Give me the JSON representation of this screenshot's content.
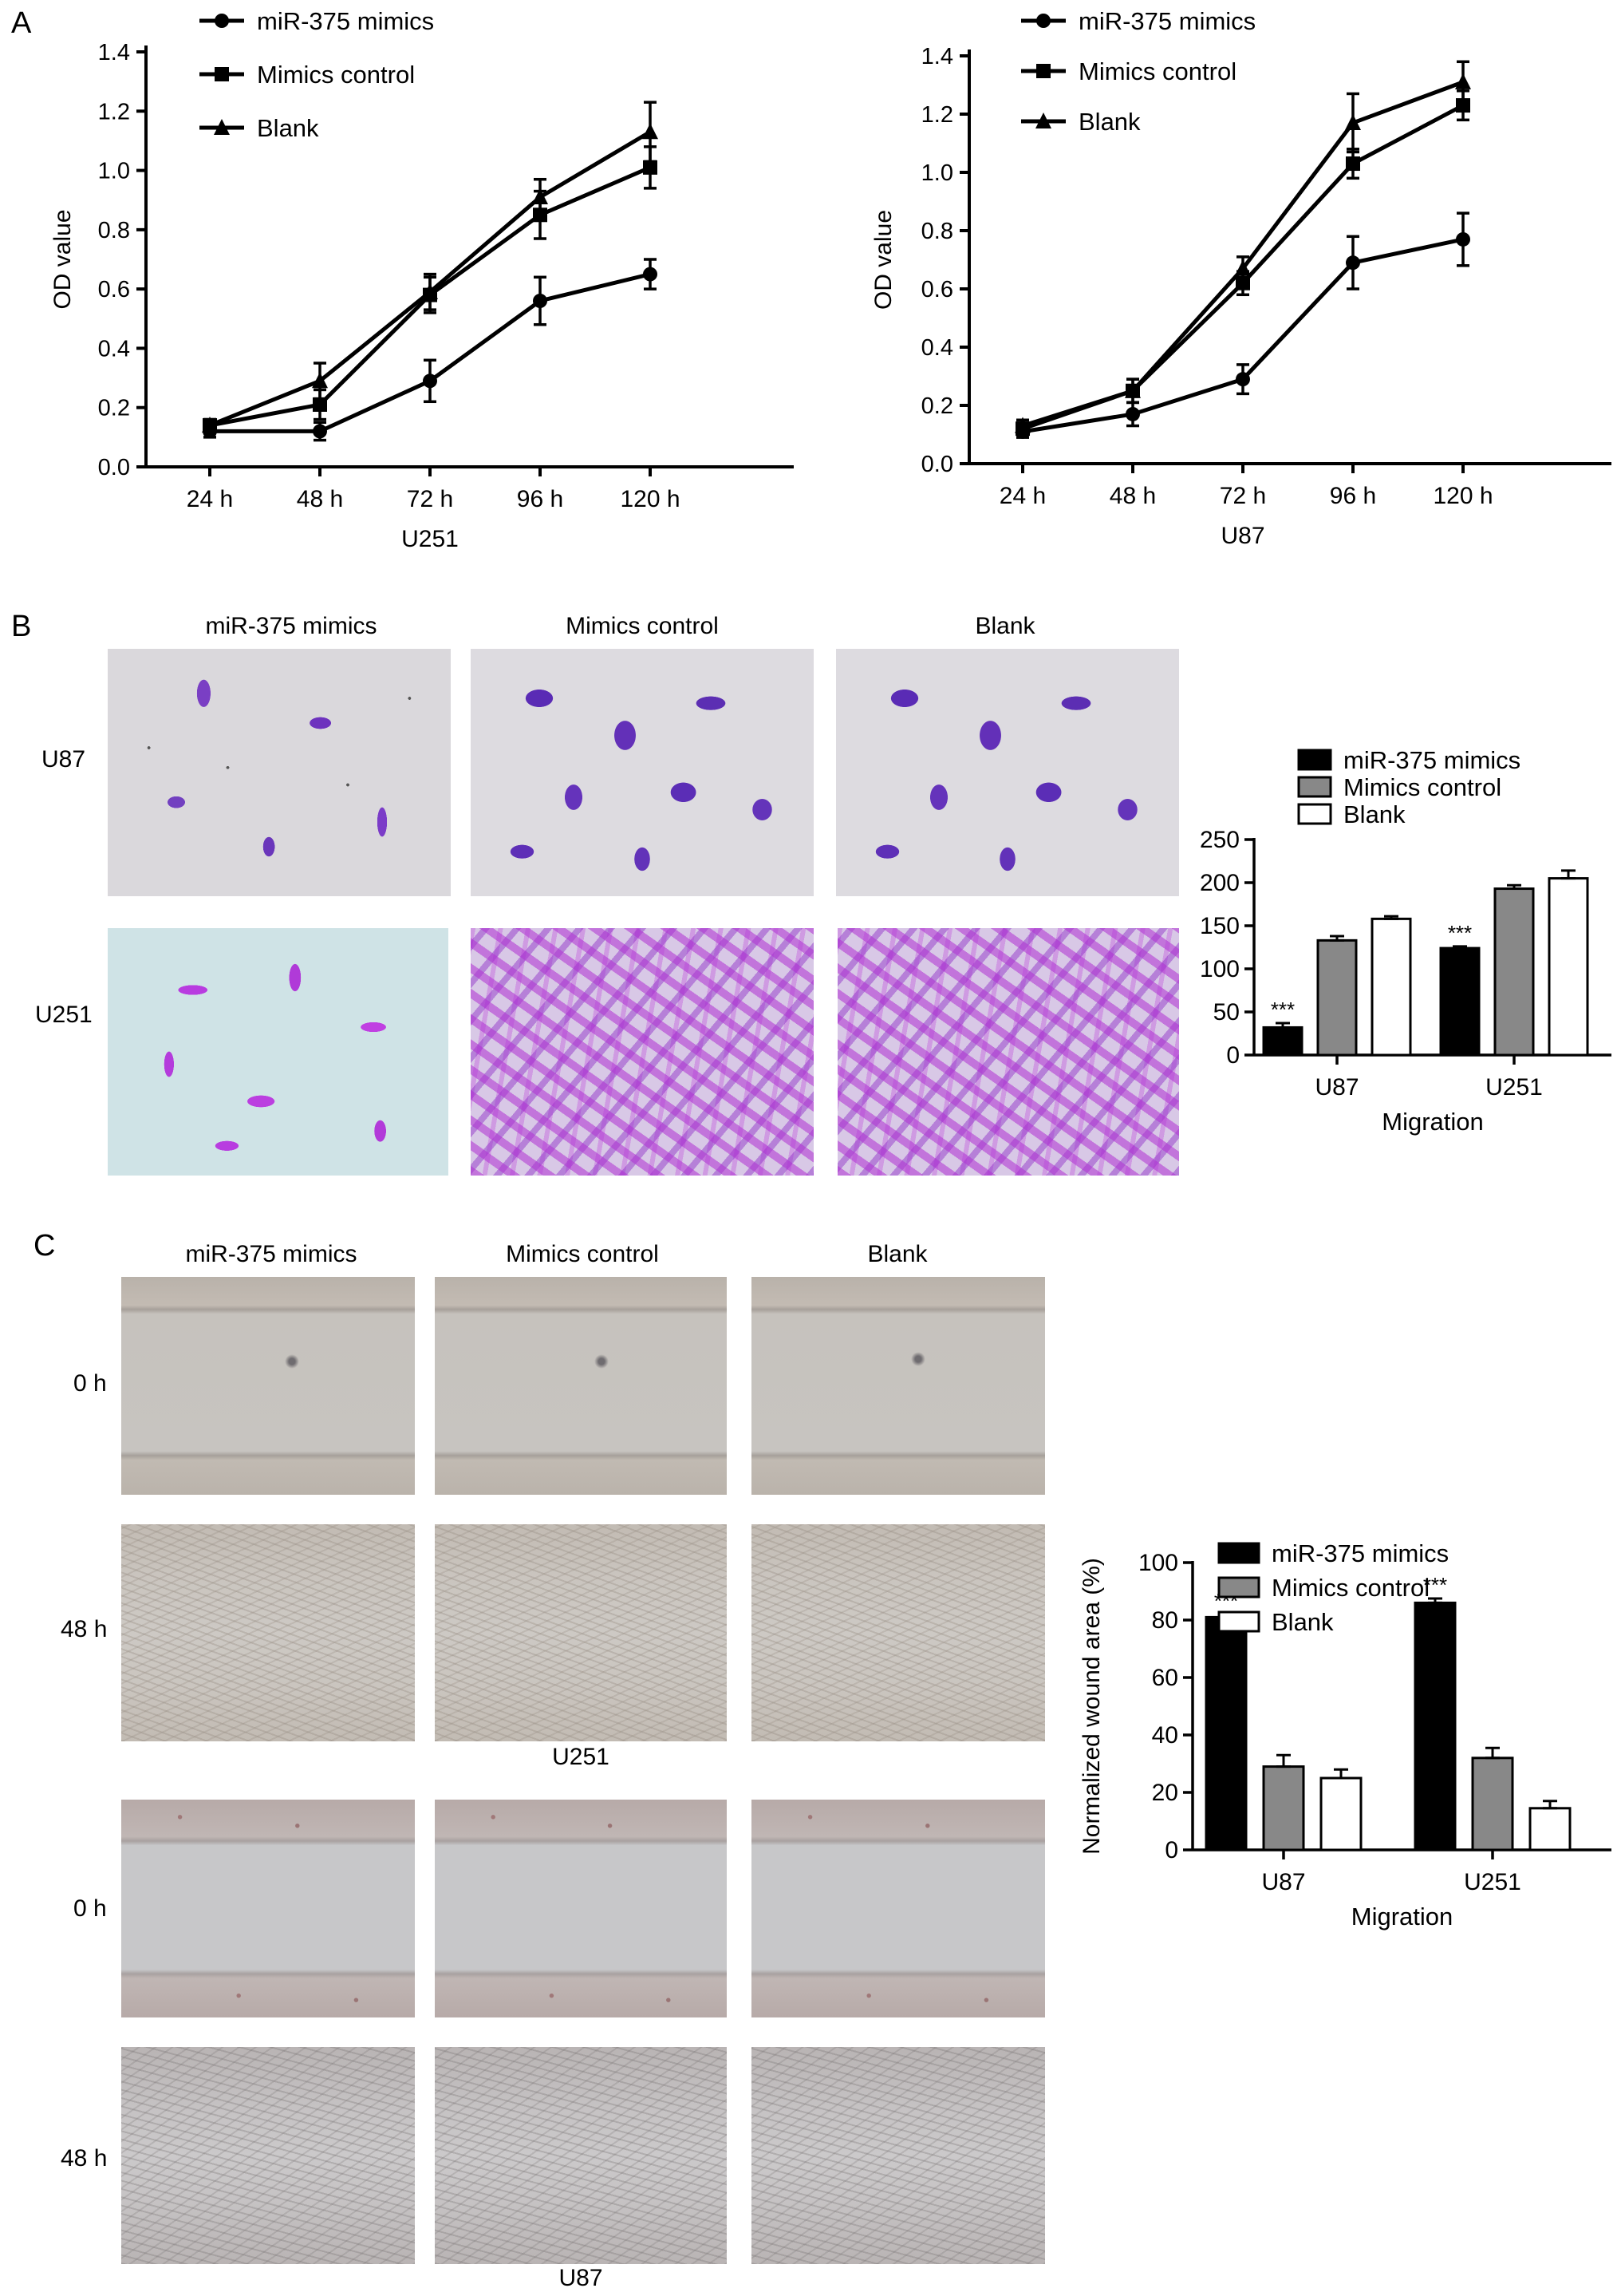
{
  "panels": {
    "a": "A",
    "b": "B",
    "c": "C"
  },
  "groups": [
    "miR-375 mimics",
    "Mimics control",
    "Blank"
  ],
  "chart_data": [
    {
      "id": "A-U251",
      "type": "line",
      "categories": [
        "24 h",
        "48 h",
        "72 h",
        "96 h",
        "120 h"
      ],
      "xlabel": "U251",
      "ylabel": "OD value",
      "ylim": [
        0,
        1.4
      ],
      "yticks": [
        "0.0",
        "0.2",
        "0.4",
        "0.6",
        "0.8",
        "1.0",
        "1.2",
        "1.4"
      ],
      "legend_position": "top-left",
      "series": [
        {
          "name": "miR-375 mimics",
          "marker": "circle",
          "values": [
            0.12,
            0.12,
            0.29,
            0.56,
            0.65
          ],
          "errors": [
            0.02,
            0.03,
            0.07,
            0.08,
            0.05
          ]
        },
        {
          "name": "Mimics control",
          "marker": "square",
          "values": [
            0.14,
            0.21,
            0.58,
            0.85,
            1.01
          ],
          "errors": [
            0.02,
            0.05,
            0.06,
            0.08,
            0.07
          ]
        },
        {
          "name": "Blank",
          "marker": "triangle",
          "values": [
            0.14,
            0.29,
            0.59,
            0.91,
            1.13
          ],
          "errors": [
            0.02,
            0.06,
            0.06,
            0.06,
            0.1
          ]
        }
      ]
    },
    {
      "id": "A-U87",
      "type": "line",
      "categories": [
        "24 h",
        "48 h",
        "72 h",
        "96 h",
        "120 h"
      ],
      "xlabel": "U87",
      "ylabel": "OD value",
      "ylim": [
        0,
        1.4
      ],
      "yticks": [
        "0.0",
        "0.2",
        "0.4",
        "0.6",
        "0.8",
        "1.0",
        "1.2",
        "1.4"
      ],
      "legend_position": "top-left",
      "series": [
        {
          "name": "miR-375 mimics",
          "marker": "circle",
          "values": [
            0.11,
            0.17,
            0.29,
            0.69,
            0.77
          ],
          "errors": [
            0.02,
            0.04,
            0.05,
            0.09,
            0.09
          ]
        },
        {
          "name": "Mimics control",
          "marker": "square",
          "values": [
            0.12,
            0.25,
            0.62,
            1.03,
            1.23
          ],
          "errors": [
            0.02,
            0.04,
            0.04,
            0.05,
            0.05
          ]
        },
        {
          "name": "Blank",
          "marker": "triangle",
          "values": [
            0.13,
            0.25,
            0.67,
            1.17,
            1.31
          ],
          "errors": [
            0.02,
            0.04,
            0.04,
            0.1,
            0.07
          ]
        }
      ]
    },
    {
      "id": "B-transwell",
      "type": "bar",
      "categories": [
        "U87",
        "U251"
      ],
      "xlabel": "Migration",
      "ylabel": "",
      "ylim": [
        0,
        250
      ],
      "yticks": [
        "0",
        "50",
        "100",
        "150",
        "200",
        "250"
      ],
      "legend_position": "top",
      "series": [
        {
          "name": "miR-375 mimics",
          "color": "#000000",
          "values": [
            32,
            124
          ],
          "errors": [
            5,
            2
          ],
          "annotations": [
            "***",
            "***"
          ]
        },
        {
          "name": "Mimics control",
          "color": "#888888",
          "values": [
            133,
            193
          ],
          "errors": [
            5,
            4
          ],
          "annotations": [
            "",
            ""
          ]
        },
        {
          "name": "Blank",
          "color": "#ffffff",
          "values": [
            158,
            205
          ],
          "errors": [
            3,
            9
          ],
          "annotations": [
            "",
            ""
          ]
        }
      ]
    },
    {
      "id": "C-wound",
      "type": "bar",
      "categories": [
        "U87",
        "U251"
      ],
      "xlabel": "Migration",
      "ylabel": "Normalized wound area (%)",
      "ylim": [
        0,
        100
      ],
      "yticks": [
        "0",
        "20",
        "40",
        "60",
        "80",
        "100"
      ],
      "legend_position": "top",
      "series": [
        {
          "name": "miR-375 mimics",
          "color": "#000000",
          "values": [
            81,
            86
          ],
          "errors": [
            1,
            1.5
          ],
          "annotations": [
            "***",
            "***"
          ]
        },
        {
          "name": "Mimics control",
          "color": "#888888",
          "values": [
            29,
            32
          ],
          "errors": [
            4,
            3.5
          ],
          "annotations": [
            "",
            ""
          ]
        },
        {
          "name": "Blank",
          "color": "#ffffff",
          "values": [
            25,
            14.5
          ],
          "errors": [
            3,
            2.5
          ],
          "annotations": [
            "",
            ""
          ]
        }
      ]
    }
  ],
  "panel_b": {
    "columns": [
      "miR-375 mimics",
      "Mimics control",
      "Blank"
    ],
    "rows": [
      "U87",
      "U251"
    ]
  },
  "panel_c": {
    "columns": [
      "miR-375 mimics",
      "Mimics control",
      "Blank"
    ],
    "rows": [
      "0 h",
      "48 h",
      "0 h",
      "48 h"
    ],
    "captions": [
      "U251",
      "U87"
    ]
  }
}
